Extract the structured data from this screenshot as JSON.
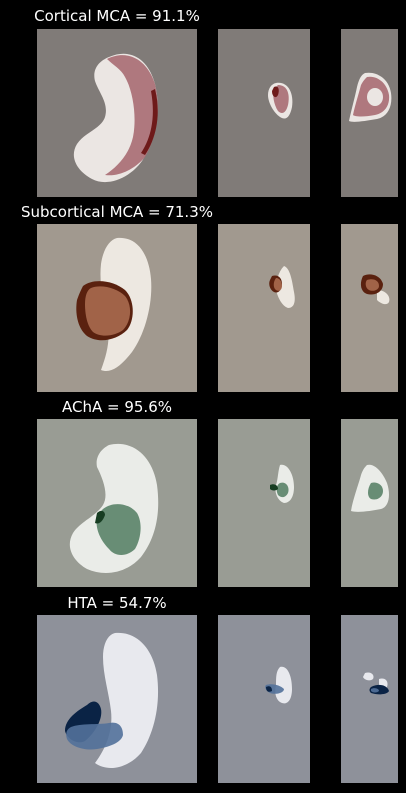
{
  "rows": [
    {
      "title": "Cortical MCA = 91.1%",
      "background": "#807b78",
      "mask_color": "#ebe6e3",
      "overlay_color": "#a86c72",
      "dark_color": "#6e1a1a"
    },
    {
      "title": "Subcortical MCA = 71.3%",
      "background": "#a1998f",
      "mask_color": "#ede8e1",
      "overlay_color": "#a86a4f",
      "dark_color": "#5a210f"
    },
    {
      "title": "AChA = 95.6%",
      "background": "#999c94",
      "mask_color": "#eaece8",
      "overlay_color": "#5a8368",
      "dark_color": "#173d22"
    },
    {
      "title": "HTA = 54.7%",
      "background": "#8e919a",
      "mask_color": "#e8e9ee",
      "overlay_color": "#52719a",
      "dark_color": "#0a2345"
    }
  ]
}
